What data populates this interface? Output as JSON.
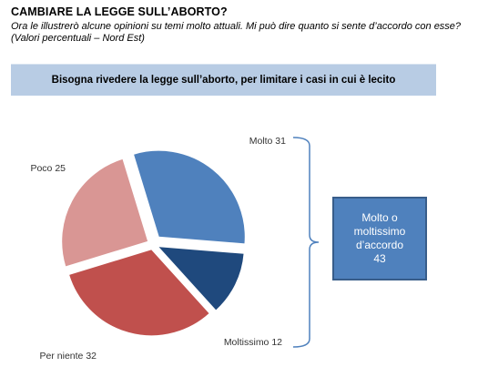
{
  "header": {
    "title": "CAMBIARE LA LEGGE SULL’ABORTO?",
    "subtitle": "Ora le illustrerò alcune opinioni su temi molto attuali. Mi può dire quanto si sente d’accordo con esse? (Valori percentuali – Nord Est)"
  },
  "question": "Bisogna rivedere la legge sull’aborto, per limitare i casi in cui è lecito",
  "chart_data": {
    "type": "pie",
    "title": "",
    "slices": [
      {
        "label": "Molto",
        "value": 31,
        "color": "#4f81bd"
      },
      {
        "label": "Moltissimo",
        "value": 12,
        "color": "#1f497d"
      },
      {
        "label": "Per niente",
        "value": 32,
        "color": "#c0504d"
      },
      {
        "label": "Poco",
        "value": 25,
        "color": "#d99694"
      }
    ],
    "callout": {
      "lines": [
        "Molto o",
        "moltissimo",
        "d’accordo",
        "43"
      ],
      "color": "#4f81bd"
    }
  }
}
